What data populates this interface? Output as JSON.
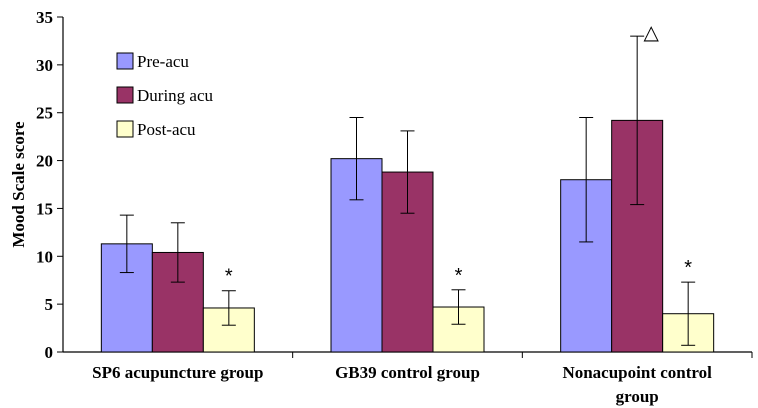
{
  "chart_data": {
    "type": "bar",
    "ylabel": "Mood Scale score",
    "xlabel": "",
    "title": "",
    "ylim": [
      0,
      35
    ],
    "yticks": [
      "0",
      "5",
      "10",
      "15",
      "20",
      "25",
      "30",
      "35"
    ],
    "categories": [
      [
        "SP6 acupuncture group"
      ],
      [
        "GB39 control group"
      ],
      [
        "Nonacupoint control",
        "group"
      ]
    ],
    "series": [
      {
        "name": "Pre-acu",
        "color": "#9999ff",
        "values": [
          11.3,
          20.2,
          18.0
        ],
        "errors": [
          3.0,
          4.3,
          6.5
        ]
      },
      {
        "name": "During acu",
        "color": "#993366",
        "values": [
          10.4,
          18.8,
          24.2
        ],
        "errors": [
          3.1,
          4.3,
          8.8
        ]
      },
      {
        "name": "Post-acu",
        "color": "#ffffcc",
        "values": [
          4.6,
          4.7,
          4.0
        ],
        "errors": [
          1.8,
          1.8,
          3.3
        ]
      }
    ],
    "annotations": [
      {
        "series": 2,
        "category": 0,
        "text": "*"
      },
      {
        "series": 2,
        "category": 1,
        "text": "*"
      },
      {
        "series": 2,
        "category": 2,
        "text": "*"
      },
      {
        "series": 1,
        "category": 2,
        "text": "△"
      }
    ],
    "legend": {
      "placement": "top-left"
    },
    "grid": false
  }
}
